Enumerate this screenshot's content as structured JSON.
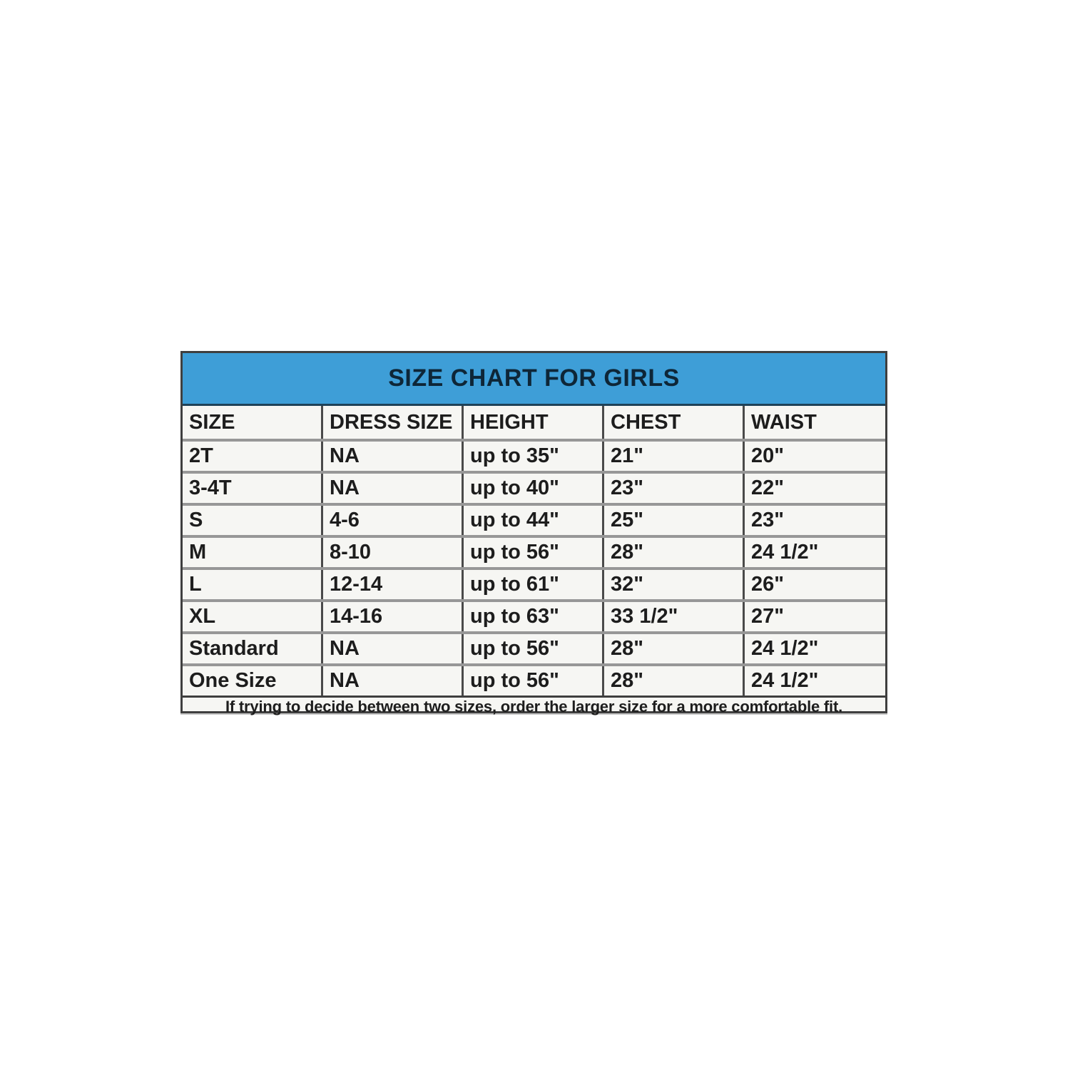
{
  "chart_data": {
    "type": "table",
    "title": "SIZE CHART FOR GIRLS",
    "columns": [
      "SIZE",
      "DRESS SIZE",
      "HEIGHT",
      "CHEST",
      "WAIST"
    ],
    "rows": [
      [
        "2T",
        "NA",
        "up to 35\"",
        "21\"",
        "20\""
      ],
      [
        "3-4T",
        "NA",
        "up to 40\"",
        "23\"",
        "22\""
      ],
      [
        "S",
        "4-6",
        "up to 44\"",
        "25\"",
        "23\""
      ],
      [
        "M",
        "8-10",
        "up to 56\"",
        "28\"",
        "24 1/2\""
      ],
      [
        "L",
        "12-14",
        "up to 61\"",
        "32\"",
        "26\""
      ],
      [
        "XL",
        "14-16",
        "up to 63\"",
        "33 1/2\"",
        "27\""
      ],
      [
        "Standard",
        "NA",
        "up to 56\"",
        "28\"",
        "24 1/2\""
      ],
      [
        "One Size",
        "NA",
        "up to 56\"",
        "28\"",
        "24 1/2\""
      ]
    ],
    "note": "If trying to decide between two sizes, order the larger size for a more comfortable fit."
  },
  "colors": {
    "banner_bg": "#3E9ED7",
    "banner_border": "#1E4258",
    "title_text": "#0E2637",
    "cell_bg": "#F6F6F3",
    "text_color": "#1D1D1D",
    "row_divider": "#979797",
    "col_divider": "#4A4A4A",
    "outer_border": "#3F3F3F"
  }
}
